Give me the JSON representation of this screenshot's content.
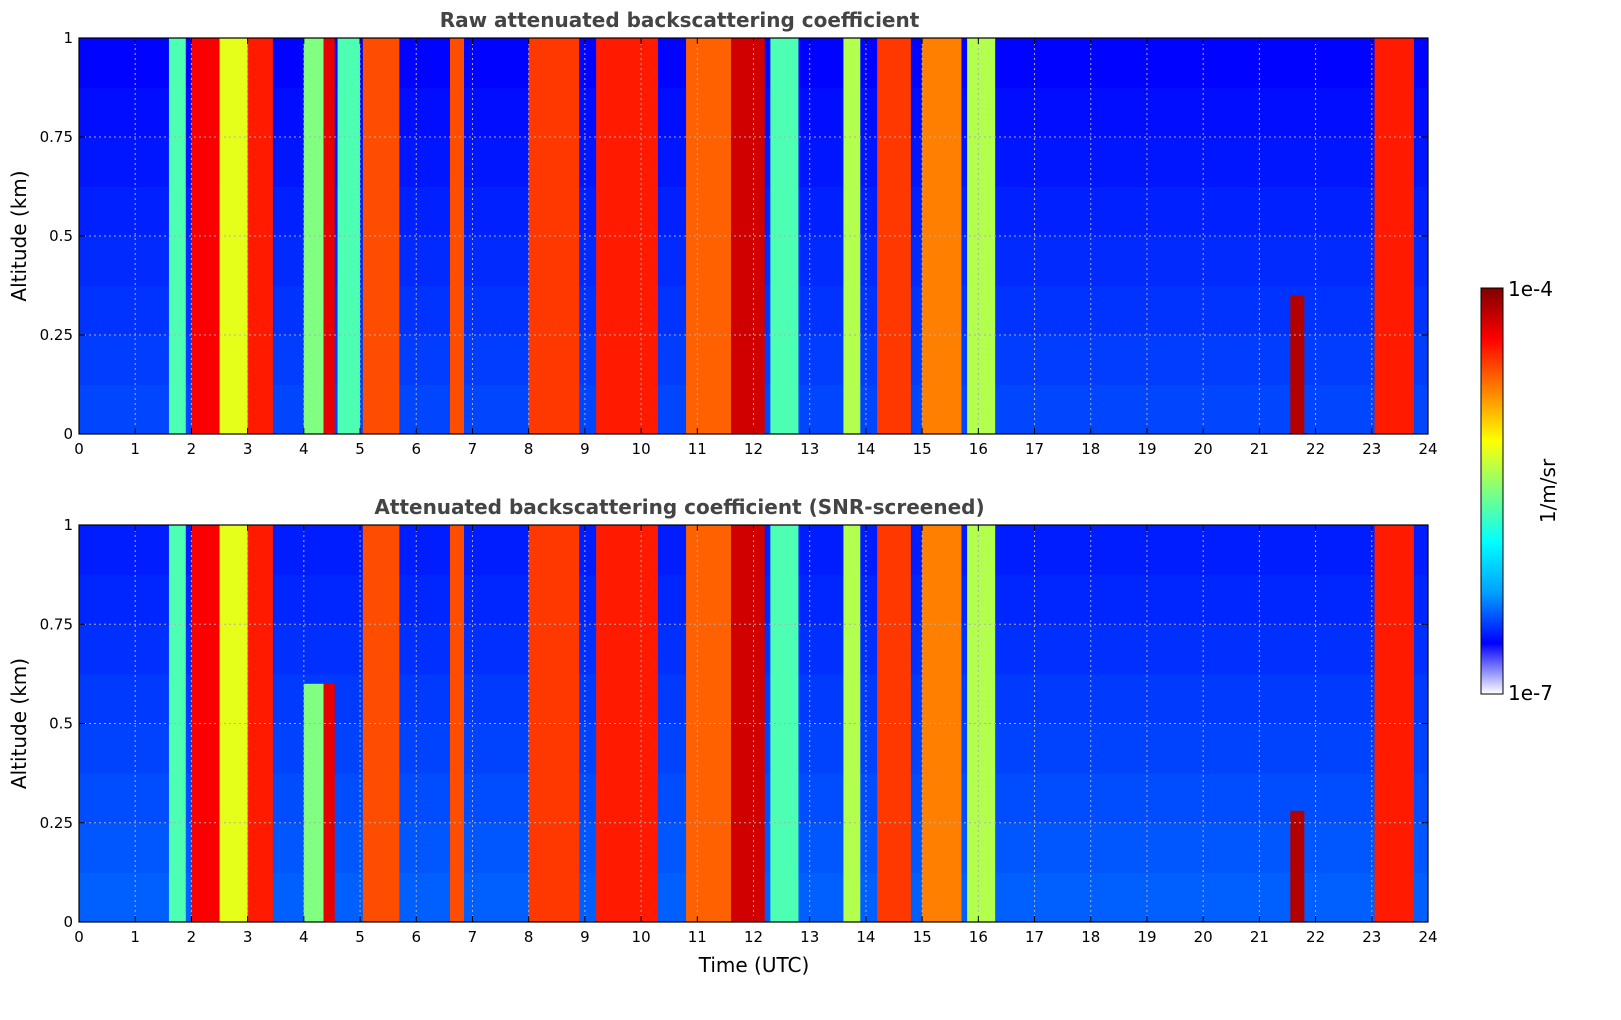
{
  "chart_data": [
    {
      "type": "heatmap",
      "title": "Raw attenuated backscattering coefficient",
      "xlabel": "",
      "ylabel": "Altitude (km)",
      "xlim": [
        0,
        24
      ],
      "ylim": [
        0,
        1
      ],
      "x_ticks": [
        "0",
        "1",
        "2",
        "3",
        "4",
        "5",
        "6",
        "7",
        "8",
        "9",
        "10",
        "11",
        "12",
        "13",
        "14",
        "15",
        "16",
        "17",
        "18",
        "19",
        "20",
        "21",
        "22",
        "23",
        "24"
      ],
      "y_ticks": [
        "0",
        "0.25",
        "0.5",
        "0.75",
        "1"
      ],
      "grid": true,
      "background_level": 0.12,
      "bands": [
        {
          "x0": 1.6,
          "x1": 1.9,
          "level": 0.45,
          "top": 1.0
        },
        {
          "x0": 2.0,
          "x1": 2.5,
          "level": 0.88,
          "top": 1.0
        },
        {
          "x0": 2.5,
          "x1": 3.0,
          "level": 0.6,
          "top": 1.0
        },
        {
          "x0": 3.0,
          "x1": 3.45,
          "level": 0.85,
          "top": 1.0
        },
        {
          "x0": 4.0,
          "x1": 4.35,
          "level": 0.5,
          "top": 1.0
        },
        {
          "x0": 4.35,
          "x1": 4.55,
          "level": 0.9,
          "top": 1.0
        },
        {
          "x0": 4.6,
          "x1": 5.0,
          "level": 0.45,
          "top": 1.0
        },
        {
          "x0": 5.05,
          "x1": 5.7,
          "level": 0.8,
          "top": 1.0
        },
        {
          "x0": 6.6,
          "x1": 6.85,
          "level": 0.8,
          "top": 1.0
        },
        {
          "x0": 8.0,
          "x1": 8.9,
          "level": 0.82,
          "top": 1.0
        },
        {
          "x0": 9.2,
          "x1": 10.3,
          "level": 0.85,
          "top": 1.0
        },
        {
          "x0": 10.8,
          "x1": 11.6,
          "level": 0.78,
          "top": 1.0
        },
        {
          "x0": 11.6,
          "x1": 12.2,
          "level": 0.92,
          "top": 1.0
        },
        {
          "x0": 12.3,
          "x1": 12.8,
          "level": 0.45,
          "top": 1.0
        },
        {
          "x0": 13.6,
          "x1": 13.9,
          "level": 0.55,
          "top": 1.0
        },
        {
          "x0": 14.2,
          "x1": 14.8,
          "level": 0.82,
          "top": 1.0
        },
        {
          "x0": 15.0,
          "x1": 15.7,
          "level": 0.75,
          "top": 1.0
        },
        {
          "x0": 15.8,
          "x1": 16.3,
          "level": 0.55,
          "top": 1.0
        },
        {
          "x0": 21.55,
          "x1": 21.8,
          "level": 0.95,
          "top": 0.35
        },
        {
          "x0": 23.05,
          "x1": 23.75,
          "level": 0.85,
          "top": 1.0
        }
      ]
    },
    {
      "type": "heatmap",
      "title": "Attenuated backscattering coefficient (SNR-screened)",
      "xlabel": "Time (UTC)",
      "ylabel": "Altitude (km)",
      "xlim": [
        0,
        24
      ],
      "ylim": [
        0,
        1
      ],
      "x_ticks": [
        "0",
        "1",
        "2",
        "3",
        "4",
        "5",
        "6",
        "7",
        "8",
        "9",
        "10",
        "11",
        "12",
        "13",
        "14",
        "15",
        "16",
        "17",
        "18",
        "19",
        "20",
        "21",
        "22",
        "23",
        "24"
      ],
      "y_ticks": [
        "0",
        "0.25",
        "0.5",
        "0.75",
        "1"
      ],
      "grid": true,
      "background_level": 0.14,
      "bands": [
        {
          "x0": 1.6,
          "x1": 1.9,
          "level": 0.45,
          "top": 1.0
        },
        {
          "x0": 2.0,
          "x1": 2.5,
          "level": 0.88,
          "top": 1.0
        },
        {
          "x0": 2.5,
          "x1": 3.0,
          "level": 0.6,
          "top": 1.0
        },
        {
          "x0": 3.0,
          "x1": 3.45,
          "level": 0.85,
          "top": 1.0
        },
        {
          "x0": 4.0,
          "x1": 4.35,
          "level": 0.5,
          "top": 0.6
        },
        {
          "x0": 4.35,
          "x1": 4.55,
          "level": 0.9,
          "top": 0.6
        },
        {
          "x0": 5.05,
          "x1": 5.7,
          "level": 0.8,
          "top": 1.0
        },
        {
          "x0": 6.6,
          "x1": 6.85,
          "level": 0.8,
          "top": 1.0
        },
        {
          "x0": 8.0,
          "x1": 8.9,
          "level": 0.82,
          "top": 1.0
        },
        {
          "x0": 9.2,
          "x1": 10.3,
          "level": 0.85,
          "top": 1.0
        },
        {
          "x0": 10.8,
          "x1": 11.6,
          "level": 0.78,
          "top": 1.0
        },
        {
          "x0": 11.6,
          "x1": 12.2,
          "level": 0.92,
          "top": 1.0
        },
        {
          "x0": 12.3,
          "x1": 12.8,
          "level": 0.45,
          "top": 1.0
        },
        {
          "x0": 13.6,
          "x1": 13.9,
          "level": 0.55,
          "top": 1.0
        },
        {
          "x0": 14.2,
          "x1": 14.8,
          "level": 0.82,
          "top": 1.0
        },
        {
          "x0": 15.0,
          "x1": 15.7,
          "level": 0.75,
          "top": 1.0
        },
        {
          "x0": 15.8,
          "x1": 16.3,
          "level": 0.55,
          "top": 1.0
        },
        {
          "x0": 21.55,
          "x1": 21.8,
          "level": 0.95,
          "top": 0.28
        },
        {
          "x0": 23.05,
          "x1": 23.75,
          "level": 0.85,
          "top": 1.0
        }
      ]
    }
  ],
  "colorbar": {
    "label": "1/m/sr",
    "max_label": "1e-4",
    "min_label": "1e-7",
    "colormap": "jet",
    "colors": [
      "#ffffff",
      "#0000ff",
      "#00a0ff",
      "#00ffff",
      "#80ff80",
      "#ffff00",
      "#ff8000",
      "#ff0000",
      "#800000"
    ]
  }
}
